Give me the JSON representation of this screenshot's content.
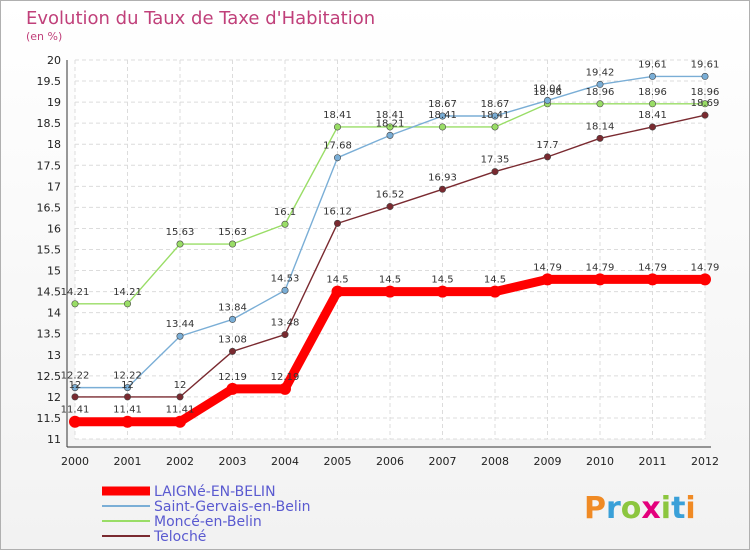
{
  "chart_data": {
    "type": "line",
    "title": "Evolution du Taux de Taxe d'Habitation",
    "subtitle": "(en %)",
    "x": [
      "2000",
      "2001",
      "2002",
      "2003",
      "2004",
      "2005",
      "2006",
      "2007",
      "2008",
      "2009",
      "2010",
      "2011",
      "2012"
    ],
    "ylim": [
      11,
      20
    ],
    "yticks": [
      "11",
      "11.5",
      "12",
      "12.5",
      "13",
      "13.5",
      "14",
      "14.5",
      "15",
      "15.5",
      "16",
      "16.5",
      "17",
      "17.5",
      "18",
      "18.5",
      "19",
      "19.5",
      "20"
    ],
    "grid": true,
    "legend_position": "bottom-left",
    "series": [
      {
        "name": "LAIGNé-EN-BELIN",
        "color": "#ff0000",
        "values": [
          11.41,
          11.41,
          11.41,
          12.19,
          12.19,
          14.5,
          14.5,
          14.5,
          14.5,
          14.79,
          14.79,
          14.79,
          14.79
        ],
        "labels": [
          "11.41",
          "11.41",
          "11.41",
          "12.19",
          "12.19",
          "14.5",
          "14.5",
          "14.5",
          "14.5",
          "14.79",
          "14.79",
          "14.79",
          "14.79"
        ]
      },
      {
        "name": "Saint-Gervais-en-Belin",
        "color": "#7aaed6",
        "values": [
          12.22,
          12.22,
          13.44,
          13.84,
          14.53,
          17.68,
          18.21,
          18.67,
          18.67,
          19.04,
          19.42,
          19.61,
          19.61
        ],
        "labels": [
          "12.22",
          "12.22",
          "13.44",
          "13.84",
          "14.53",
          "17.68",
          "18.21",
          "18.67",
          "18.67",
          "19.04",
          "19.42",
          "19.61",
          "19.61"
        ]
      },
      {
        "name": "Moncé-en-Belin",
        "color": "#99dd66",
        "values": [
          14.21,
          14.21,
          15.63,
          15.63,
          16.1,
          18.41,
          18.41,
          18.41,
          18.41,
          18.96,
          18.96,
          18.96,
          18.96
        ],
        "labels": [
          "14.21",
          "14.21",
          "15.63",
          "15.63",
          "16.1",
          "18.41",
          "18.41",
          "18.41",
          "18.41",
          "18.96",
          "18.96",
          "18.96",
          "18.96"
        ]
      },
      {
        "name": "Teloché",
        "color": "#7a2a30",
        "values": [
          12,
          12,
          12,
          13.08,
          13.48,
          16.12,
          16.52,
          16.93,
          17.35,
          17.7,
          18.14,
          18.41,
          18.69
        ],
        "labels": [
          "12",
          "12",
          "12",
          "13.08",
          "13.48",
          "16.12",
          "16.52",
          "16.93",
          "17.35",
          "17.7",
          "18.14",
          "18.41",
          "18.69"
        ]
      }
    ]
  },
  "logo": {
    "letters": [
      "P",
      "r",
      "o",
      "x",
      "i",
      "t",
      "i"
    ],
    "colors": [
      "#f08a24",
      "#3aa0d8",
      "#8cc63f",
      "#e4007c",
      "#8cc63f",
      "#3aa0d8",
      "#f08a24"
    ]
  }
}
